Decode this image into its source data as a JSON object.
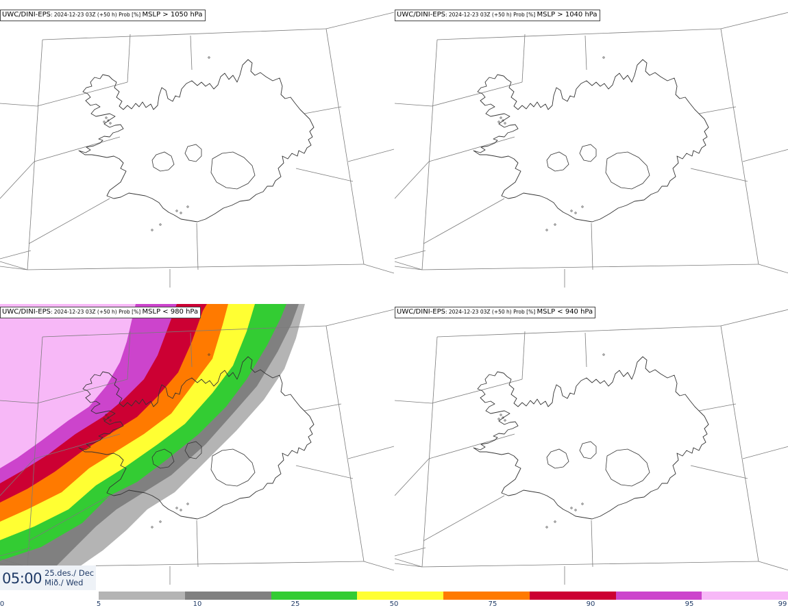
{
  "panels": [
    {
      "model": "UWC/DINI-EPS",
      "meta": ": 2024-12-23 03Z (+50 h) Prob [%] ",
      "field": "MSLP > 1050 hPa",
      "shaded": false
    },
    {
      "model": "UWC/DINI-EPS",
      "meta": ": 2024-12-23 03Z (+50 h) Prob [%] ",
      "field": "MSLP > 1040 hPa",
      "shaded": false
    },
    {
      "model": "UWC/DINI-EPS",
      "meta": ": 2024-12-23 03Z (+50 h) Prob [%] ",
      "field": "MSLP < 980 hPa",
      "shaded": true
    },
    {
      "model": "UWC/DINI-EPS",
      "meta": ": 2024-12-23 03Z (+50 h) Prob [%] ",
      "field": "MSLP < 940 hPa",
      "shaded": false
    }
  ],
  "valid_time": {
    "time": "05:00",
    "date_line1": "25.des./ Dec",
    "date_line2": "Mið./ Wed"
  },
  "colorbar": {
    "labels": [
      "0",
      "5",
      "10",
      "25",
      "50",
      "75",
      "90",
      "95",
      "99"
    ],
    "colors": [
      "#ffffff",
      "#b4b4b4",
      "#808080",
      "#33cc33",
      "#ffff33",
      "#ff7a00",
      "#cc0033",
      "#cc44cc",
      "#f7b8f7"
    ]
  }
}
